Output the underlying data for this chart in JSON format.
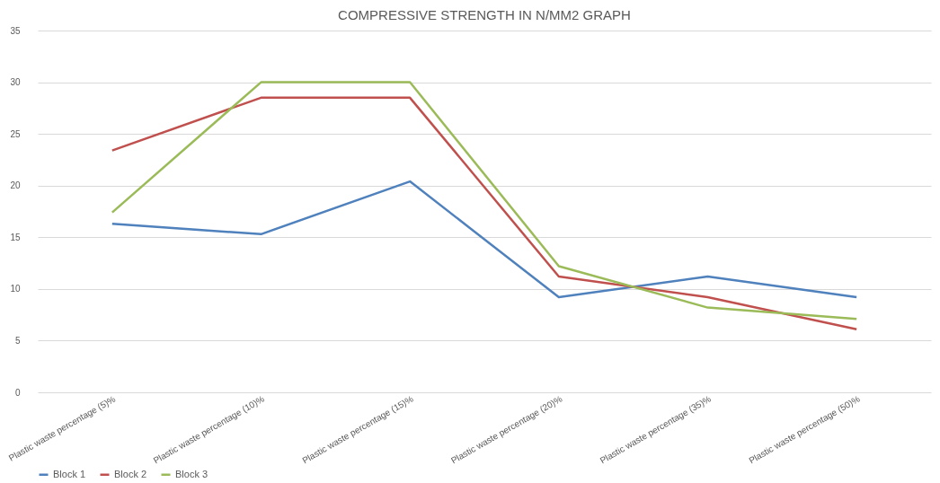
{
  "chart_data": {
    "type": "line",
    "title": "COMPRESSIVE STRENGTH IN N/MM2 GRAPH",
    "categories": [
      "Plastic waste percentage (5)%",
      "Plastic waste percentage (10)%",
      "Plastic waste percentage (15)%",
      "Plastic waste percentage (20)%",
      "Plastic waste percentage (35)%",
      "Plastic waste percentage (50)%"
    ],
    "series": [
      {
        "name": "Block 1",
        "color": "#4f81bd",
        "values": [
          16.3,
          15.3,
          20.4,
          9.2,
          11.2,
          9.2
        ]
      },
      {
        "name": "Block 2",
        "color": "#c0504d",
        "values": [
          23.4,
          28.5,
          28.5,
          11.2,
          9.2,
          6.1
        ]
      },
      {
        "name": "Block 3",
        "color": "#9bbb59",
        "values": [
          17.4,
          30,
          30,
          12.2,
          8.2,
          7.1
        ]
      }
    ],
    "ylim": [
      0,
      35
    ],
    "yticks": [
      0,
      5,
      10,
      15,
      20,
      25,
      30,
      35
    ],
    "grid": "y",
    "legend": "bottom"
  }
}
